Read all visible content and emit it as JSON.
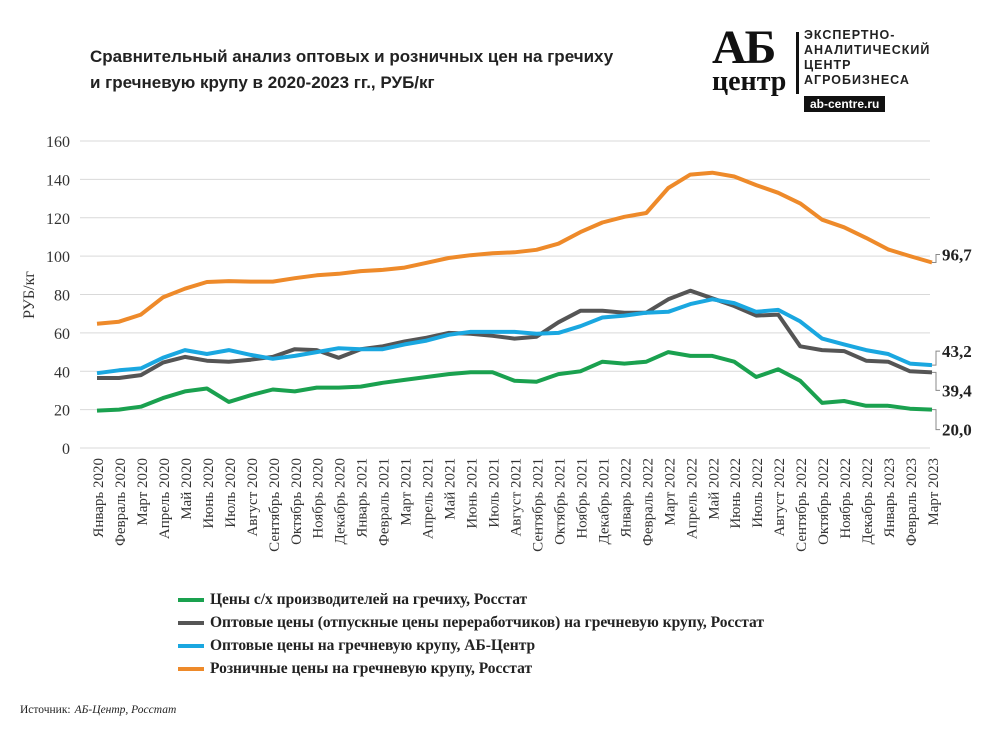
{
  "title_line1": "Сравнительный анализ оптовых и розничных цен на гречиху",
  "title_line2": "и гречневую крупу в 2020-2023 гг., РУБ/кг",
  "logo": {
    "mark_top": "АБ",
    "mark_bottom": "центр",
    "text": "ЭКСПЕРТНО-\nАНАЛИТИЧЕСКИЙ\nЦЕНТР\nАГРОБИЗНЕСА",
    "url": "ab-centre.ru"
  },
  "source_label": "Источник:",
  "source_value": "АБ-Центр, Росстат",
  "chart_data": {
    "type": "line",
    "title": "Сравнительный анализ оптовых и розничных цен на гречиху и гречневую крупу в 2020-2023 гг., РУБ/кг",
    "ylabel": "РУБ/кг",
    "xlabel": "",
    "ylim": [
      0,
      160
    ],
    "yticks": [
      0,
      20,
      40,
      60,
      80,
      100,
      120,
      140,
      160
    ],
    "grid": true,
    "legend_position": "bottom",
    "categories": [
      "Январь 2020",
      "Февраль 2020",
      "Март 2020",
      "Апрель 2020",
      "Май 2020",
      "Июнь 2020",
      "Июль 2020",
      "Август 2020",
      "Сентябрь 2020",
      "Октябрь 2020",
      "Ноябрь 2020",
      "Декабрь 2020",
      "Январь 2021",
      "Февраль 2021",
      "Март 2021",
      "Апрель 2021",
      "Май 2021",
      "Июнь 2021",
      "Июль 2021",
      "Август 2021",
      "Сентябрь 2021",
      "Октябрь 2021",
      "Ноябрь 2021",
      "Декабрь 2021",
      "Январь 2022",
      "Февраль 2022",
      "Март 2022",
      "Апрель 2022",
      "Май 2022",
      "Июнь 2022",
      "Июль 2022",
      "Август 2022",
      "Сентябрь 2022",
      "Октябрь 2022",
      "Ноябрь 2022",
      "Декабрь 2022",
      "Январь 2023",
      "Февраль 2023",
      "Март 2023"
    ],
    "series": [
      {
        "name": "Цены с/х производителей на гречиху, Росстат",
        "color": "#1aa14f",
        "end_label": "20,0",
        "values": [
          19.5,
          20,
          21.5,
          26,
          29.5,
          31,
          24,
          27.5,
          30.5,
          29.5,
          31.5,
          31.5,
          32,
          34,
          35.5,
          37,
          38.5,
          39.5,
          39.5,
          35,
          34.5,
          38.5,
          40,
          45,
          44,
          45,
          50,
          48,
          48,
          45,
          37,
          41,
          35,
          23.5,
          24.5,
          22,
          22,
          20.5,
          20.0
        ]
      },
      {
        "name": "Оптовые цены (отпускные цены переработчиков) на гречневую крупу, Росстат",
        "color": "#555555",
        "end_label": "39,4",
        "values": [
          36.5,
          36.5,
          38,
          44.5,
          47.5,
          45.5,
          45,
          46,
          47.5,
          51.5,
          51,
          47,
          51.5,
          53,
          55.5,
          57.5,
          60,
          59.5,
          58.5,
          57,
          58,
          65.5,
          71.5,
          71.5,
          70.5,
          70.5,
          77.5,
          82,
          78,
          74,
          69,
          69.5,
          53,
          51,
          50.5,
          45.5,
          45,
          40,
          39.4
        ]
      },
      {
        "name": "Оптовые цены на гречневую крупу, АБ-Центр",
        "color": "#1aa7e0",
        "end_label": "43,2",
        "values": [
          39,
          40.5,
          41.5,
          47,
          51,
          49,
          51,
          48.5,
          46.5,
          48,
          50,
          52,
          51.5,
          51.5,
          54,
          56,
          59,
          60.5,
          60.5,
          60.5,
          59.5,
          60,
          63.5,
          68,
          69,
          70.5,
          71,
          75,
          77.5,
          75.5,
          71,
          72,
          66,
          57,
          54,
          51,
          49,
          44,
          43.2
        ]
      },
      {
        "name": "Розничные цены на гречневую крупу, Росстат",
        "color": "#ee8a2a",
        "end_label": "96,7",
        "values": [
          64.8,
          65.8,
          69.5,
          78.5,
          83,
          86.5,
          87,
          86.7,
          86.7,
          88.5,
          90,
          90.8,
          92.2,
          92.8,
          94,
          96.5,
          99,
          100.5,
          101.5,
          102,
          103.3,
          106.5,
          112.5,
          117.5,
          120.5,
          122.5,
          135.5,
          142.5,
          143.5,
          141.5,
          137,
          133,
          127.5,
          119,
          115,
          109.5,
          103.5,
          100,
          96.7
        ]
      }
    ]
  }
}
